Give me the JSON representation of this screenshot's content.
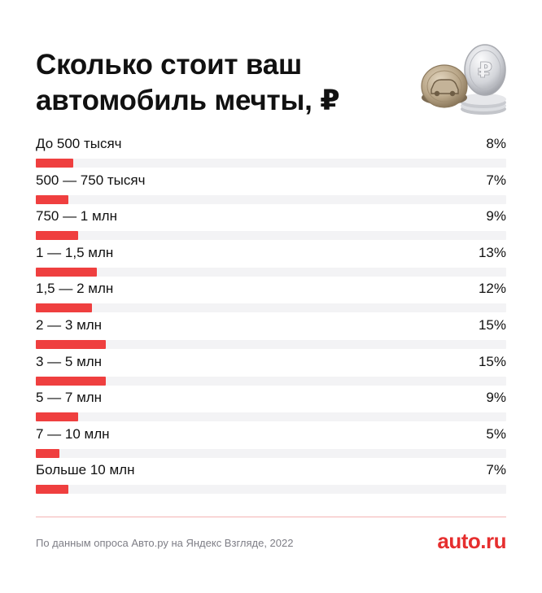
{
  "header": {
    "title": "Сколько стоит ваш автомобиль мечты, ₽"
  },
  "illustration": {
    "icon": "coins-car-ruble-icon",
    "coin_glyph": "₽"
  },
  "chart_data": {
    "type": "bar",
    "orientation": "horizontal",
    "categories": [
      "До 500 тысяч",
      "500 — 750 тысяч",
      "750 — 1 млн",
      "1 — 1,5 млн",
      "1,5 — 2 млн",
      "2 — 3 млн",
      "3 — 5 млн",
      "5 — 7 млн",
      "7 — 10 млн",
      "Больше 10 млн"
    ],
    "values": [
      8,
      7,
      9,
      13,
      12,
      15,
      15,
      9,
      5,
      7
    ],
    "value_labels": [
      "8%",
      "7%",
      "9%",
      "13%",
      "12%",
      "15%",
      "15%",
      "9%",
      "5%",
      "7%"
    ],
    "unit": "%",
    "xlim": [
      0,
      100
    ],
    "grid": false,
    "bar_color": "#ef3f3f",
    "track_color": "#f3f3f5"
  },
  "footer": {
    "source": "По данным опроса Авто.ру на Яндекс Взгляде, 2022",
    "brand": "auto.ru",
    "brand_color": "#e62e2e"
  }
}
